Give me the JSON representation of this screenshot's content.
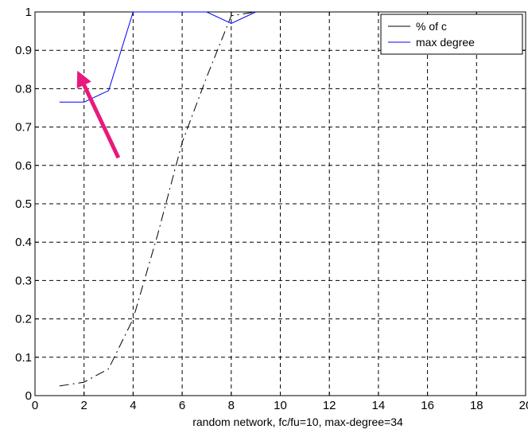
{
  "chart_data": {
    "type": "line",
    "title": "",
    "xlabel": "random network, fc/fu=10, max-degree=34",
    "ylabel": "",
    "xlim": [
      0,
      20
    ],
    "ylim": [
      0,
      1
    ],
    "xticks": [
      0,
      2,
      4,
      6,
      8,
      10,
      12,
      14,
      16,
      18,
      20
    ],
    "xtick_labels": [
      "0",
      "2",
      "4",
      "6",
      "8",
      "10",
      "12",
      "14",
      "16",
      "18",
      "20"
    ],
    "yticks": [
      0,
      0.1,
      0.2,
      0.3,
      0.4,
      0.5,
      0.6,
      0.7,
      0.8,
      0.9,
      1
    ],
    "ytick_labels": [
      "0",
      "0.1",
      "0.2",
      "0.3",
      "0.4",
      "0.5",
      "0.6",
      "0.7",
      "0.8",
      "0.9",
      "1"
    ],
    "grid": true,
    "legend_position": "top-right",
    "series": [
      {
        "name": "% of c",
        "color": "#000000",
        "style": "dash-dot",
        "x": [
          1,
          2,
          3,
          4,
          5,
          6,
          7,
          8,
          9
        ],
        "y": [
          0.025,
          0.035,
          0.07,
          0.2,
          0.42,
          0.66,
          0.83,
          0.99,
          1.0
        ]
      },
      {
        "name": "max degree",
        "color": "#0000ff",
        "style": "solid",
        "x": [
          1,
          2,
          3,
          4,
          5,
          6,
          7,
          8,
          9
        ],
        "y": [
          0.765,
          0.765,
          0.795,
          1.0,
          1.0,
          1.0,
          1.0,
          0.97,
          1.0
        ]
      }
    ],
    "annotations": [
      {
        "type": "arrow",
        "color": "#e8197d",
        "from": [
          3.4,
          0.62
        ],
        "to": [
          1.85,
          0.83
        ]
      }
    ]
  }
}
